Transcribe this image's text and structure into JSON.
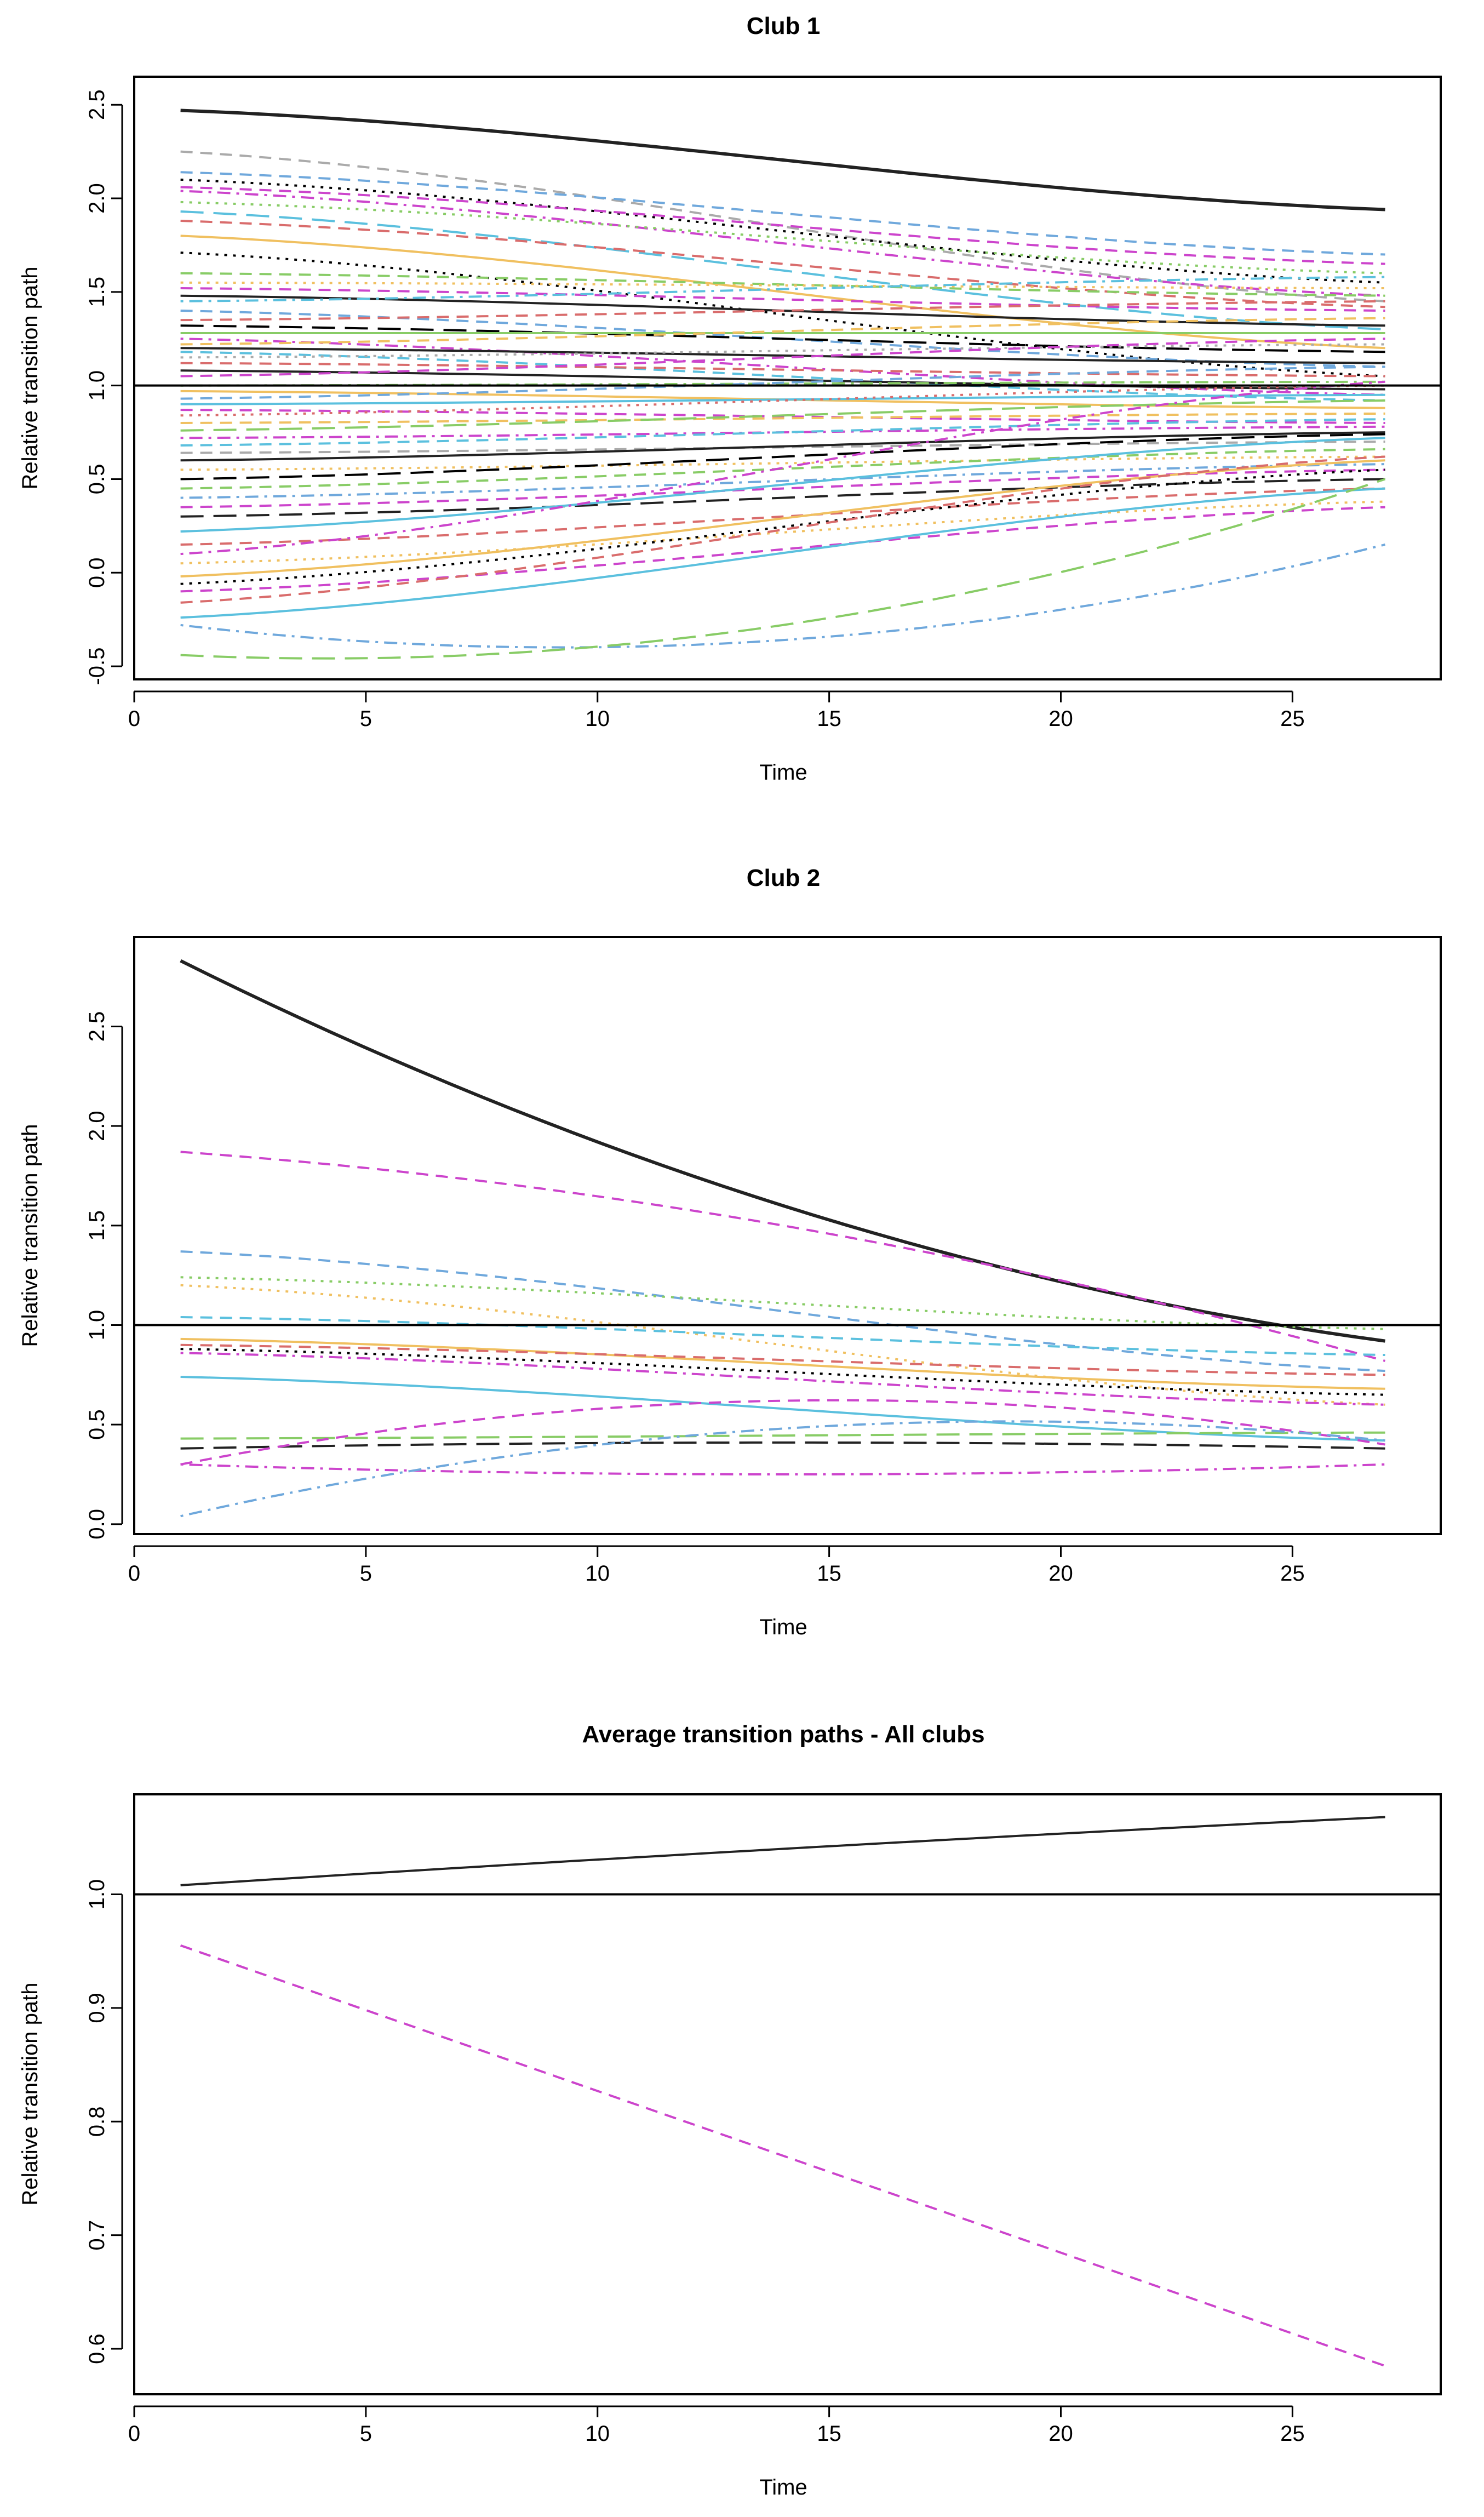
{
  "chart_data": [
    {
      "type": "line",
      "title": "Club 1",
      "xlabel": "Time",
      "ylabel": "Relative transition path",
      "xlim": [
        0,
        28.2
      ],
      "ylim": [
        -0.57,
        2.65
      ],
      "xticks": [
        "0",
        "5",
        "10",
        "15",
        "20",
        "25"
      ],
      "yticks": [
        "-0.5",
        "0.0",
        "0.5",
        "1.0",
        "1.5",
        "2.0",
        "2.5"
      ],
      "reference_line": 1.0,
      "x": [
        1,
        27
      ],
      "series_style": "many individual member paths, mixed colors and dash patterns",
      "series": [
        {
          "start": 2.47,
          "end": 1.94,
          "color": "#222222",
          "dash": "solid",
          "bold": true
        },
        {
          "start": 2.25,
          "end": 1.45,
          "color": "#aaaaaa",
          "dash": "dashed"
        },
        {
          "start": 2.14,
          "end": 1.7,
          "color": "#6fa8dc",
          "dash": "dashed"
        },
        {
          "start": 2.1,
          "end": 1.55,
          "color": "#000000",
          "dash": "dotted"
        },
        {
          "start": 2.06,
          "end": 1.65,
          "color": "#cc44cc",
          "dash": "dashed"
        },
        {
          "start": 2.04,
          "end": 1.48,
          "color": "#cc44cc",
          "dash": "dotdash"
        },
        {
          "start": 1.98,
          "end": 1.6,
          "color": "#88cc66",
          "dash": "dotted"
        },
        {
          "start": 1.93,
          "end": 1.3,
          "color": "#5bc0de",
          "dash": "longdash"
        },
        {
          "start": 1.88,
          "end": 1.42,
          "color": "#d96c6c",
          "dash": "dashed"
        },
        {
          "start": 1.8,
          "end": 1.2,
          "color": "#f0c060",
          "dash": "solid"
        },
        {
          "start": 1.71,
          "end": 1.05,
          "color": "#000000",
          "dash": "dotted"
        },
        {
          "start": 1.6,
          "end": 1.48,
          "color": "#88cc66",
          "dash": "dashed"
        },
        {
          "start": 1.55,
          "end": 1.52,
          "color": "#f0c060",
          "dash": "dotted"
        },
        {
          "start": 1.52,
          "end": 1.4,
          "color": "#cc44cc",
          "dash": "dashed"
        },
        {
          "start": 1.48,
          "end": 1.32,
          "color": "#222222",
          "dash": "solid"
        },
        {
          "start": 1.45,
          "end": 1.58,
          "color": "#5bc0de",
          "dash": "dotdash"
        },
        {
          "start": 1.4,
          "end": 1.1,
          "color": "#6fa8dc",
          "dash": "dashed"
        },
        {
          "start": 1.35,
          "end": 1.45,
          "color": "#d96c6c",
          "dash": "dashed"
        },
        {
          "start": 1.32,
          "end": 1.18,
          "color": "#000000",
          "dash": "longdash"
        },
        {
          "start": 1.28,
          "end": 1.28,
          "color": "#88cc66",
          "dash": "solid"
        },
        {
          "start": 1.25,
          "end": 0.95,
          "color": "#cc44cc",
          "dash": "dotdash"
        },
        {
          "start": 1.22,
          "end": 1.36,
          "color": "#f0c060",
          "dash": "dashed"
        },
        {
          "start": 1.2,
          "end": 1.12,
          "color": "#222222",
          "dash": "solid"
        },
        {
          "start": 1.18,
          "end": 0.92,
          "color": "#5bc0de",
          "dash": "dashed"
        },
        {
          "start": 1.15,
          "end": 1.22,
          "color": "#aaaaaa",
          "dash": "dotted"
        },
        {
          "start": 1.12,
          "end": 1.05,
          "color": "#d96c6c",
          "dash": "dashed"
        },
        {
          "start": 1.08,
          "end": 0.98,
          "color": "#222222",
          "dash": "solid"
        },
        {
          "start": 1.05,
          "end": 1.25,
          "color": "#cc44cc",
          "dash": "dashed"
        },
        {
          "start": 1.0,
          "end": 1.02,
          "color": "#88cc66",
          "dash": "dotdash"
        },
        {
          "start": 0.97,
          "end": 0.88,
          "color": "#f0c060",
          "dash": "solid"
        },
        {
          "start": 0.93,
          "end": 1.1,
          "color": "#6fa8dc",
          "dash": "dashed"
        },
        {
          "start": 0.9,
          "end": 0.95,
          "color": "#5bc0de",
          "dash": "solid"
        },
        {
          "start": 0.87,
          "end": 0.8,
          "color": "#cc44cc",
          "dash": "dashed"
        },
        {
          "start": 0.84,
          "end": 1.0,
          "color": "#d96c6c",
          "dash": "dotted"
        },
        {
          "start": 0.8,
          "end": 0.85,
          "color": "#f0c060",
          "dash": "dashed"
        },
        {
          "start": 0.76,
          "end": 0.92,
          "color": "#88cc66",
          "dash": "longdash"
        },
        {
          "start": 0.72,
          "end": 0.78,
          "color": "#cc44cc",
          "dash": "dotdash"
        },
        {
          "start": 0.68,
          "end": 0.82,
          "color": "#5bc0de",
          "dash": "dashed"
        },
        {
          "start": 0.64,
          "end": 0.7,
          "color": "#aaaaaa",
          "dash": "dashed"
        },
        {
          "start": 0.6,
          "end": 0.75,
          "color": "#222222",
          "dash": "solid"
        },
        {
          "start": 0.55,
          "end": 0.62,
          "color": "#f0c060",
          "dash": "dotted"
        },
        {
          "start": 0.5,
          "end": 0.74,
          "color": "#000000",
          "dash": "longdash"
        },
        {
          "start": 0.45,
          "end": 0.66,
          "color": "#88cc66",
          "dash": "dashed"
        },
        {
          "start": 0.4,
          "end": 0.58,
          "color": "#6fa8dc",
          "dash": "dotdash"
        },
        {
          "start": 0.35,
          "end": 0.55,
          "color": "#cc44cc",
          "dash": "dashed"
        },
        {
          "start": 0.3,
          "end": 0.5,
          "color": "#222222",
          "dash": "longdash"
        },
        {
          "start": 0.22,
          "end": 0.72,
          "color": "#5bc0de",
          "dash": "solid"
        },
        {
          "start": 0.15,
          "end": 0.45,
          "color": "#d96c6c",
          "dash": "dashed"
        },
        {
          "start": 0.1,
          "end": 1.02,
          "color": "#cc44cc",
          "dash": "dotdash"
        },
        {
          "start": 0.05,
          "end": 0.38,
          "color": "#f0c060",
          "dash": "dotted"
        },
        {
          "start": -0.02,
          "end": 0.6,
          "color": "#f0c060",
          "dash": "solid"
        },
        {
          "start": -0.06,
          "end": 0.55,
          "color": "#000000",
          "dash": "dotted"
        },
        {
          "start": -0.1,
          "end": 0.35,
          "color": "#cc44cc",
          "dash": "dashed"
        },
        {
          "start": -0.16,
          "end": 0.62,
          "color": "#d96c6c",
          "dash": "dashed"
        },
        {
          "start": -0.24,
          "end": 0.45,
          "color": "#5bc0de",
          "dash": "solid"
        },
        {
          "start": -0.28,
          "end": 0.15,
          "mid": -0.36,
          "color": "#6fa8dc",
          "dash": "dotdash"
        },
        {
          "start": -0.44,
          "end": 0.5,
          "mid": -0.28,
          "color": "#88cc66",
          "dash": "longdash"
        }
      ]
    },
    {
      "type": "line",
      "title": "Club 2",
      "xlabel": "Time",
      "ylabel": "Relative transition path",
      "xlim": [
        0,
        28.2
      ],
      "ylim": [
        -0.05,
        2.95
      ],
      "xticks": [
        "0",
        "5",
        "10",
        "15",
        "20",
        "25"
      ],
      "yticks": [
        "0.0",
        "0.5",
        "1.0",
        "1.5",
        "2.0",
        "2.5"
      ],
      "reference_line": 1.0,
      "x": [
        1,
        27
      ],
      "series": [
        {
          "start": 2.83,
          "end": 0.92,
          "mid": 1.6,
          "color": "#222222",
          "dash": "solid",
          "bold": true
        },
        {
          "start": 1.87,
          "end": 0.82,
          "mid": 1.5,
          "color": "#cc44cc",
          "dash": "dashed"
        },
        {
          "start": 1.37,
          "end": 0.77,
          "color": "#6fa8dc",
          "dash": "dashed"
        },
        {
          "start": 1.24,
          "end": 0.98,
          "color": "#88cc66",
          "dash": "dotted"
        },
        {
          "start": 1.2,
          "end": 0.6,
          "color": "#f0c060",
          "dash": "dotted"
        },
        {
          "start": 1.04,
          "end": 0.85,
          "color": "#5bc0de",
          "dash": "dashed"
        },
        {
          "start": 0.93,
          "end": 0.68,
          "color": "#f0c060",
          "dash": "solid"
        },
        {
          "start": 0.9,
          "end": 0.75,
          "color": "#d96c6c",
          "dash": "dashed"
        },
        {
          "start": 0.88,
          "end": 0.65,
          "color": "#000000",
          "dash": "dotted"
        },
        {
          "start": 0.86,
          "end": 0.6,
          "color": "#cc44cc",
          "dash": "dotdash"
        },
        {
          "start": 0.74,
          "end": 0.42,
          "color": "#5bc0de",
          "dash": "solid"
        },
        {
          "start": 0.43,
          "end": 0.46,
          "color": "#88cc66",
          "dash": "longdash"
        },
        {
          "start": 0.38,
          "end": 0.38,
          "mid": 0.41,
          "color": "#222222",
          "dash": "longdash"
        },
        {
          "start": 0.3,
          "end": 0.4,
          "mid": 0.62,
          "color": "#cc44cc",
          "dash": "dashed"
        },
        {
          "start": 0.3,
          "end": 0.3,
          "mid": 0.25,
          "color": "#cc44cc",
          "dash": "dotdash"
        },
        {
          "start": 0.04,
          "end": 0.42,
          "mid": 0.48,
          "color": "#6fa8dc",
          "dash": "dotdash"
        }
      ]
    },
    {
      "type": "line",
      "title": "Average transition paths - All clubs",
      "xlabel": "Time",
      "ylabel": "Relative transition path",
      "xlim": [
        0,
        28.2
      ],
      "ylim": [
        0.56,
        1.088
      ],
      "xticks": [
        "0",
        "5",
        "10",
        "15",
        "20",
        "25"
      ],
      "yticks": [
        "0.6",
        "0.7",
        "0.8",
        "0.9",
        "1.0"
      ],
      "reference_line": 1.0,
      "x": [
        1,
        27
      ],
      "series": [
        {
          "start": 1.008,
          "end": 1.068,
          "mid": 1.04,
          "color": "#222222",
          "dash": "solid"
        },
        {
          "start": 0.955,
          "end": 0.585,
          "mid": 0.77,
          "color": "#cc44cc",
          "dash": "dashed"
        }
      ]
    }
  ]
}
